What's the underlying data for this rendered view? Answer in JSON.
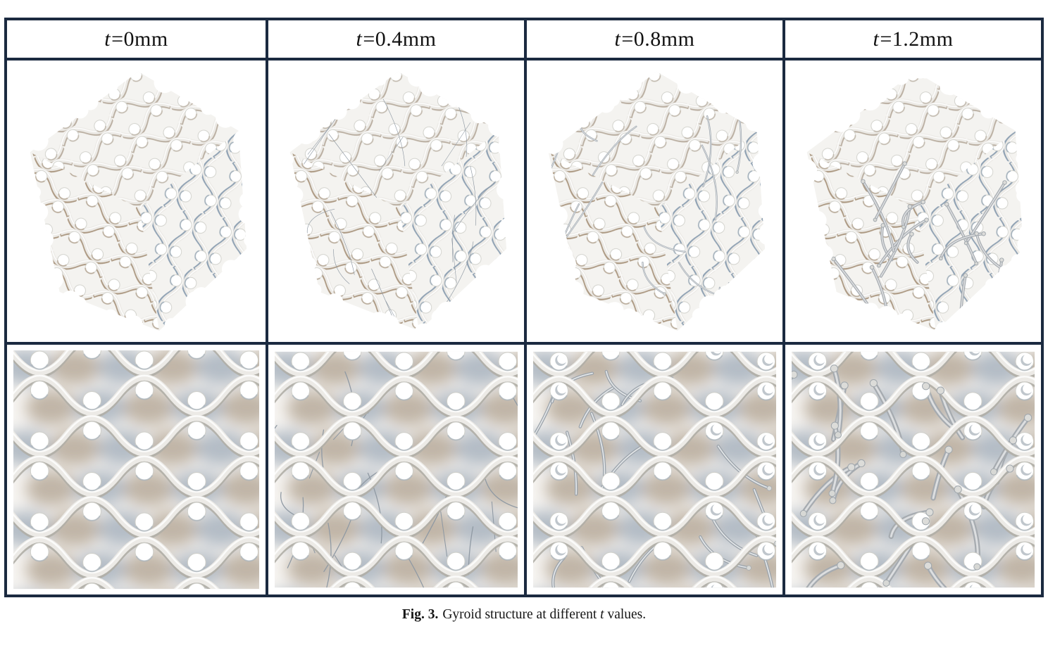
{
  "figure": {
    "columns": [
      {
        "var": "t",
        "rest": "=0mm",
        "t_mm": 0
      },
      {
        "var": "t",
        "rest": "=0.4mm",
        "t_mm": 0.4
      },
      {
        "var": "t",
        "rest": "=0.8mm",
        "t_mm": 0.8
      },
      {
        "var": "t",
        "rest": "=1.2mm",
        "t_mm": 1.2
      }
    ]
  },
  "caption": {
    "label": "Fig. 3.",
    "before": "Gyroid structure at different",
    "var": "t",
    "after": "values."
  },
  "colors": {
    "table_border": "#1b2a40",
    "surface_light": "#eceae6",
    "surface_shadow": "#b0aea6",
    "face_tan": "#a08a70",
    "face_blue": "#7e93a8",
    "blob_brown": "#8d7a62",
    "blob_steel": "#74889d"
  }
}
